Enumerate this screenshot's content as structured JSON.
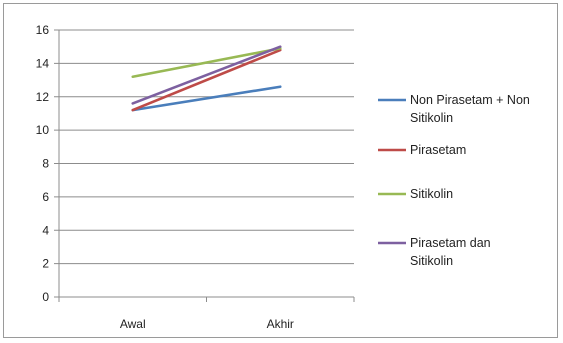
{
  "chart_data": {
    "type": "line",
    "categories": [
      "Awal",
      "Akhir"
    ],
    "ylim": [
      0,
      16
    ],
    "yticks": [
      0,
      2,
      4,
      6,
      8,
      10,
      12,
      14,
      16
    ],
    "grid": true,
    "legend_position": "right",
    "series": [
      {
        "name": "Non Pirasetam + Non Sitikolin",
        "legend_lines": [
          "Non Pirasetam + Non",
          "Sitikolin"
        ],
        "values": [
          11.2,
          12.6
        ],
        "color": "#4a7ebb"
      },
      {
        "name": "Pirasetam",
        "legend_lines": [
          "Pirasetam"
        ],
        "values": [
          11.2,
          14.8
        ],
        "color": "#be4b48"
      },
      {
        "name": "Sitikolin",
        "legend_lines": [
          "Sitikolin"
        ],
        "values": [
          13.2,
          14.9
        ],
        "color": "#98b954"
      },
      {
        "name": "Pirasetam dan Sitikolin",
        "legend_lines": [
          "Pirasetam dan",
          "Sitikolin"
        ],
        "values": [
          11.6,
          15.0
        ],
        "color": "#7d60a0"
      }
    ]
  }
}
